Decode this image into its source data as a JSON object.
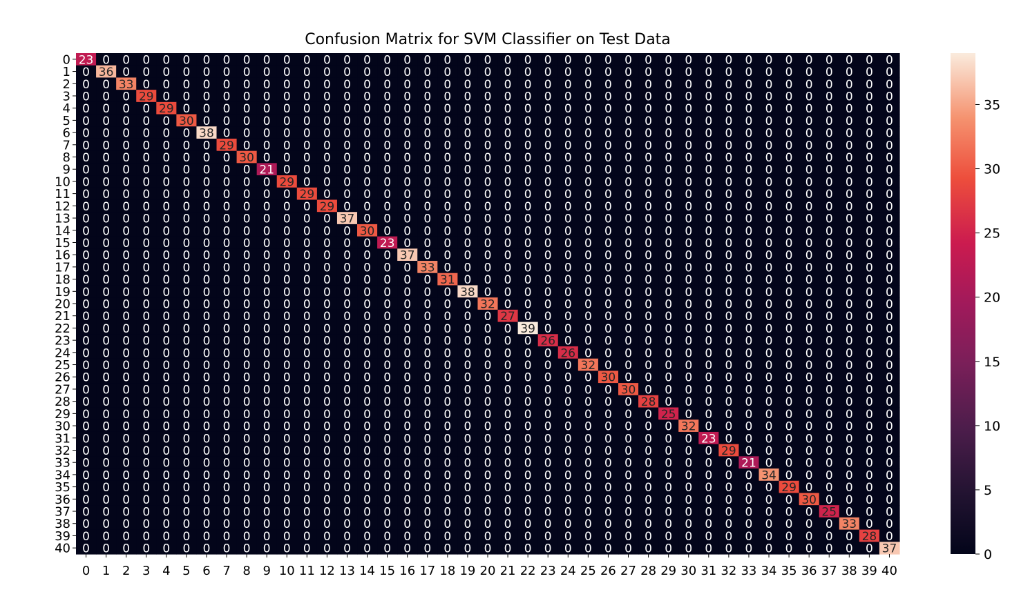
{
  "chart_data": {
    "type": "heatmap",
    "title": "Confusion Matrix for SVM Classifier on Test Data",
    "xlabel": "",
    "ylabel": "",
    "x_tick_labels": [
      "0",
      "1",
      "2",
      "3",
      "4",
      "5",
      "6",
      "7",
      "8",
      "9",
      "10",
      "11",
      "12",
      "13",
      "14",
      "15",
      "16",
      "17",
      "18",
      "19",
      "20",
      "21",
      "22",
      "23",
      "24",
      "25",
      "26",
      "27",
      "28",
      "29",
      "30",
      "31",
      "32",
      "33",
      "34",
      "35",
      "36",
      "37",
      "38",
      "39",
      "40"
    ],
    "y_tick_labels": [
      "0",
      "1",
      "2",
      "3",
      "4",
      "5",
      "6",
      "7",
      "8",
      "9",
      "10",
      "11",
      "12",
      "13",
      "14",
      "15",
      "16",
      "17",
      "18",
      "19",
      "20",
      "21",
      "22",
      "23",
      "24",
      "25",
      "26",
      "27",
      "28",
      "29",
      "30",
      "31",
      "32",
      "33",
      "34",
      "35",
      "36",
      "37",
      "38",
      "39",
      "40"
    ],
    "diagonal_values": [
      23,
      36,
      33,
      29,
      29,
      30,
      38,
      29,
      30,
      21,
      29,
      29,
      29,
      37,
      30,
      23,
      37,
      33,
      31,
      38,
      32,
      27,
      39,
      26,
      26,
      32,
      30,
      30,
      28,
      25,
      32,
      23,
      29,
      21,
      34,
      29,
      30,
      25,
      33,
      28,
      37
    ],
    "off_diagonal_value": 0,
    "annotations": true,
    "colormap": "rocket",
    "color_range": [
      0,
      39
    ],
    "colorbar_ticks": [
      0,
      5,
      10,
      15,
      20,
      25,
      30,
      35
    ],
    "grid": false
  }
}
